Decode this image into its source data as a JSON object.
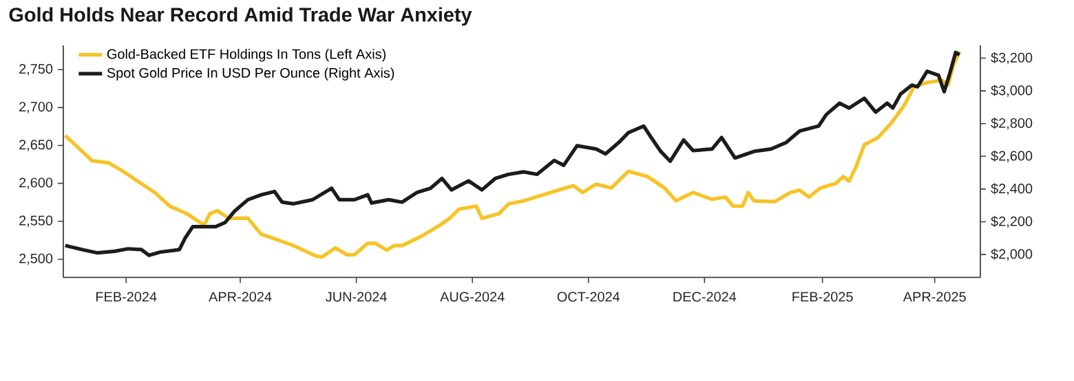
{
  "chart_data": {
    "type": "line",
    "title": "Gold Holds Near Record Amid Trade War Anxiety",
    "legend": "top left",
    "xlim": [
      "2023-12-30",
      "2025-04-25"
    ],
    "xticks": [
      {
        "value": "2024-02-01",
        "label": "FEB-2024"
      },
      {
        "value": "2024-04-01",
        "label": "APR-2024"
      },
      {
        "value": "2024-06-01",
        "label": "JUN-2024"
      },
      {
        "value": "2024-08-01",
        "label": "AUG-2024"
      },
      {
        "value": "2024-10-01",
        "label": "OCT-2024"
      },
      {
        "value": "2024-12-01",
        "label": "DEC-2024"
      },
      {
        "value": "2025-02-01",
        "label": "FEB-2025"
      },
      {
        "value": "2025-04-01",
        "label": "APR-2025"
      }
    ],
    "ylim": [
      2476,
      2782
    ],
    "yticks": [
      {
        "value": 2500,
        "label": "2,500"
      },
      {
        "value": 2550,
        "label": "2,550"
      },
      {
        "value": 2600,
        "label": "2,600"
      },
      {
        "value": 2650,
        "label": "2,650"
      },
      {
        "value": 2700,
        "label": "2,700"
      },
      {
        "value": 2750,
        "label": "2,750"
      }
    ],
    "y2lim": [
      1860,
      3278
    ],
    "y2ticks": [
      {
        "value": 2000,
        "label": "$2,000"
      },
      {
        "value": 2200,
        "label": "$2,200"
      },
      {
        "value": 2400,
        "label": "$2,400"
      },
      {
        "value": 2600,
        "label": "$2,600"
      },
      {
        "value": 2800,
        "label": "$2,800"
      },
      {
        "value": 3000,
        "label": "$3,000"
      },
      {
        "value": 3200,
        "label": "$3,200"
      }
    ],
    "series": [
      {
        "name": "Gold-Backed ETF Holdings In Tons (Left Axis)",
        "color": "#f7c325",
        "axis": "y",
        "x": [
          "2023-12-31",
          "2024-01-09",
          "2024-01-14",
          "2024-01-23",
          "2024-01-31",
          "2024-02-07",
          "2024-02-16",
          "2024-02-24",
          "2024-03-04",
          "2024-03-13",
          "2024-03-16",
          "2024-03-20",
          "2024-03-26",
          "2024-04-05",
          "2024-04-12",
          "2024-04-19",
          "2024-04-29",
          "2024-05-11",
          "2024-05-14",
          "2024-05-21",
          "2024-05-27",
          "2024-05-31",
          "2024-06-07",
          "2024-06-11",
          "2024-06-17",
          "2024-06-21",
          "2024-06-25",
          "2024-07-05",
          "2024-07-15",
          "2024-07-20",
          "2024-07-25",
          "2024-08-03",
          "2024-08-06",
          "2024-08-15",
          "2024-08-20",
          "2024-08-28",
          "2024-09-11",
          "2024-09-23",
          "2024-09-28",
          "2024-10-05",
          "2024-10-13",
          "2024-10-22",
          "2024-11-01",
          "2024-11-10",
          "2024-11-16",
          "2024-11-25",
          "2024-12-05",
          "2024-12-12",
          "2024-12-16",
          "2024-12-21",
          "2024-12-24",
          "2024-12-27",
          "2025-01-07",
          "2025-01-15",
          "2025-01-20",
          "2025-01-25",
          "2025-01-31",
          "2025-02-08",
          "2025-02-12",
          "2025-02-15",
          "2025-02-19",
          "2025-02-23",
          "2025-03-02",
          "2025-03-09",
          "2025-03-16",
          "2025-03-21",
          "2025-03-28",
          "2025-04-05",
          "2025-04-08",
          "2025-04-11",
          "2025-04-14"
        ],
        "values": [
          2663,
          2642,
          2630,
          2627,
          2615,
          2603,
          2588,
          2570,
          2560,
          2545,
          2560,
          2564,
          2554,
          2554,
          2533,
          2527,
          2518,
          2504,
          2503,
          2515,
          2506,
          2506,
          2521,
          2521,
          2512,
          2518,
          2518,
          2530,
          2545,
          2554,
          2566,
          2570,
          2554,
          2560,
          2573,
          2577,
          2588,
          2597,
          2588,
          2599,
          2594,
          2616,
          2609,
          2594,
          2577,
          2588,
          2579,
          2582,
          2570,
          2570,
          2588,
          2577,
          2576,
          2588,
          2591,
          2582,
          2594,
          2600,
          2609,
          2603,
          2624,
          2651,
          2660,
          2679,
          2703,
          2727,
          2733,
          2736,
          2730,
          2757,
          2774
        ]
      },
      {
        "name": "Spot Gold Price In USD Per Ounce (Right Axis)",
        "color": "#1c1c1c",
        "axis": "y2",
        "x": [
          "2023-12-31",
          "2024-01-09",
          "2024-01-17",
          "2024-01-26",
          "2024-02-02",
          "2024-02-09",
          "2024-02-13",
          "2024-02-19",
          "2024-02-29",
          "2024-03-03",
          "2024-03-07",
          "2024-03-14",
          "2024-03-19",
          "2024-03-24",
          "2024-03-29",
          "2024-04-05",
          "2024-04-12",
          "2024-04-19",
          "2024-04-23",
          "2024-04-29",
          "2024-05-09",
          "2024-05-19",
          "2024-05-23",
          "2024-05-31",
          "2024-06-07",
          "2024-06-09",
          "2024-06-18",
          "2024-06-25",
          "2024-07-03",
          "2024-07-10",
          "2024-07-16",
          "2024-07-21",
          "2024-07-30",
          "2024-08-06",
          "2024-08-13",
          "2024-08-20",
          "2024-08-28",
          "2024-09-04",
          "2024-09-13",
          "2024-09-18",
          "2024-09-25",
          "2024-10-05",
          "2024-10-10",
          "2024-10-17",
          "2024-10-22",
          "2024-10-30",
          "2024-11-03",
          "2024-11-08",
          "2024-11-13",
          "2024-11-20",
          "2024-11-25",
          "2024-12-05",
          "2024-12-10",
          "2024-12-17",
          "2024-12-27",
          "2025-01-05",
          "2025-01-13",
          "2025-01-20",
          "2025-01-30",
          "2025-02-03",
          "2025-02-10",
          "2025-02-15",
          "2025-02-23",
          "2025-03-01",
          "2025-03-07",
          "2025-03-10",
          "2025-03-14",
          "2025-03-20",
          "2025-03-23",
          "2025-03-28",
          "2025-04-03",
          "2025-04-06",
          "2025-04-09",
          "2025-04-12",
          "2025-04-14"
        ],
        "values": [
          2055,
          2030,
          2010,
          2020,
          2035,
          2030,
          1995,
          2015,
          2030,
          2100,
          2170,
          2170,
          2170,
          2195,
          2265,
          2335,
          2365,
          2385,
          2320,
          2310,
          2335,
          2405,
          2335,
          2335,
          2365,
          2315,
          2335,
          2320,
          2380,
          2405,
          2465,
          2395,
          2450,
          2395,
          2465,
          2490,
          2505,
          2490,
          2575,
          2545,
          2665,
          2645,
          2615,
          2685,
          2745,
          2785,
          2715,
          2630,
          2570,
          2700,
          2635,
          2645,
          2715,
          2590,
          2630,
          2645,
          2685,
          2755,
          2785,
          2855,
          2925,
          2895,
          2955,
          2870,
          2925,
          2895,
          2980,
          3035,
          3025,
          3120,
          3095,
          2995,
          3110,
          3235,
          3220
        ]
      }
    ]
  }
}
